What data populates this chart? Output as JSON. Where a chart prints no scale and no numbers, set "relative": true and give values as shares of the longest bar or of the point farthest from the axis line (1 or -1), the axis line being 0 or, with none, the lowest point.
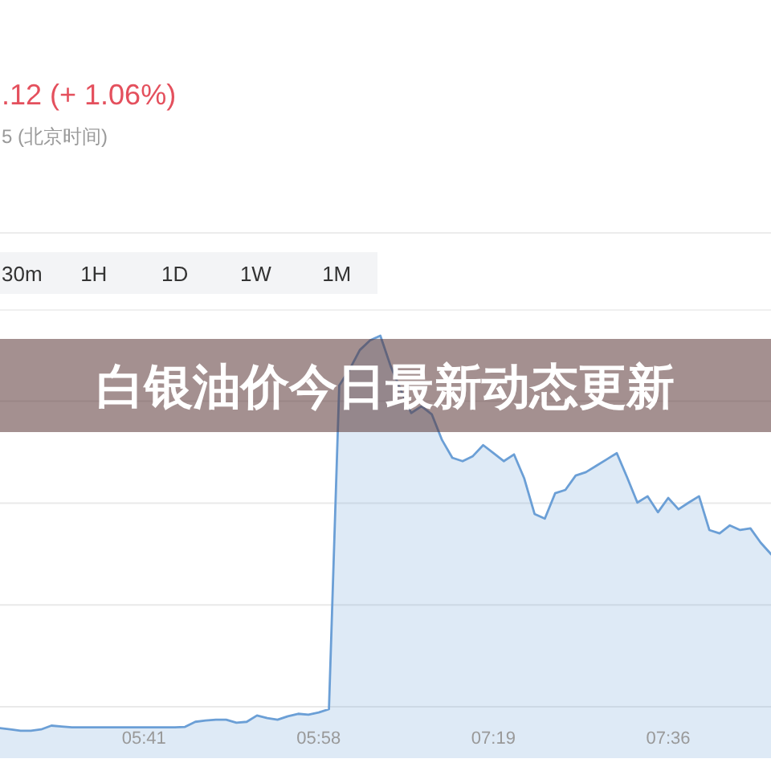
{
  "chart_data": {
    "type": "area",
    "title": "白银油价今日最新动态更新",
    "annotations": [
      ".12 (+ 1.06%)",
      "5 (北京时间)",
      "30m",
      "1H",
      "1D",
      "1W",
      "1M"
    ],
    "categories": [
      null,
      null,
      null,
      null,
      null,
      null,
      null,
      null,
      null,
      null,
      null,
      null,
      null,
      null,
      "05:41",
      null,
      null,
      null,
      null,
      null,
      null,
      null,
      null,
      null,
      null,
      null,
      null,
      null,
      null,
      null,
      null,
      "05:58",
      null,
      null,
      null,
      null,
      null,
      null,
      null,
      null,
      null,
      null,
      null,
      null,
      null,
      null,
      null,
      null,
      "07:19",
      null,
      null,
      null,
      null,
      null,
      null,
      null,
      null,
      null,
      null,
      null,
      null,
      null,
      null,
      null,
      null,
      "07:36",
      null,
      null,
      null,
      null,
      null,
      null,
      null,
      null,
      null,
      null
    ],
    "series": [
      {
        "color": "#6b9fd6",
        "values": [
          0.071,
          0.068,
          0.065,
          0.065,
          0.068,
          0.077,
          0.075,
          0.073,
          0.073,
          0.073,
          0.073,
          0.073,
          0.073,
          0.073,
          0.073,
          0.073,
          0.073,
          0.073,
          0.074,
          0.086,
          0.089,
          0.091,
          0.091,
          0.084,
          0.086,
          0.101,
          0.095,
          0.091,
          0.099,
          0.105,
          0.103,
          0.108,
          0.116,
          0.882,
          0.92,
          0.966,
          0.989,
          1,
          0.928,
          0.871,
          0.817,
          0.833,
          0.814,
          0.753,
          0.711,
          0.703,
          0.715,
          0.741,
          0.722,
          0.703,
          0.719,
          0.662,
          0.578,
          0.567,
          0.627,
          0.635,
          0.669,
          0.677,
          0.692,
          0.707,
          0.722,
          0.665,
          0.605,
          0.62,
          0.582,
          0.616,
          0.589,
          0.605,
          0.62,
          0.54,
          0.532,
          0.551,
          0.54,
          0.544,
          0.51,
          0.483
        ]
      }
    ],
    "relative": true,
    "grid": "y"
  }
}
